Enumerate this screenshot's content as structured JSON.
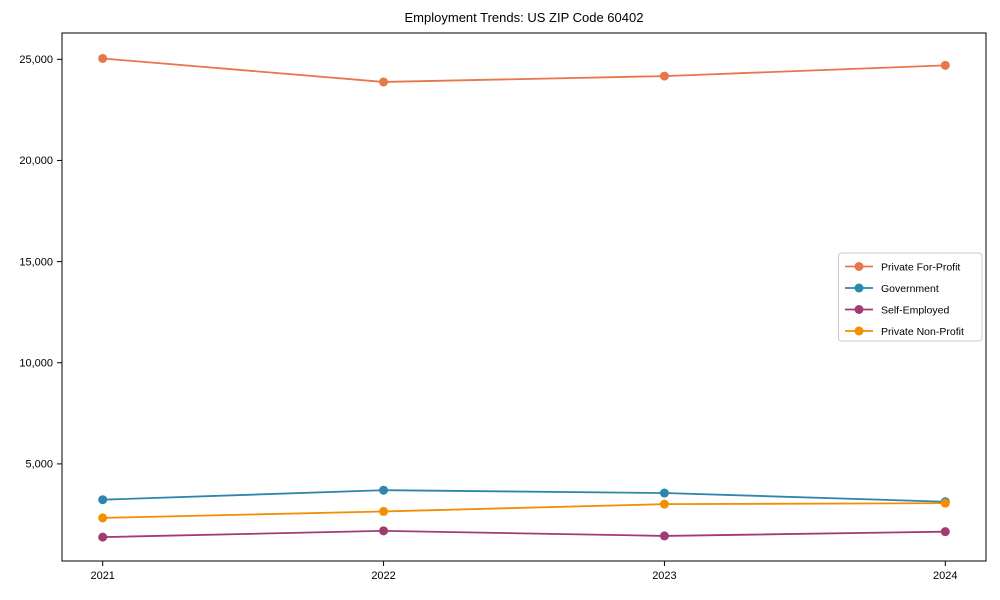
{
  "chart_data": {
    "type": "line",
    "title": "Employment Trends: US ZIP Code 60402",
    "xlabel": "",
    "ylabel": "",
    "categories": [
      "2021",
      "2022",
      "2023",
      "2024"
    ],
    "series": [
      {
        "name": "Private For-Profit",
        "color": "#E8764B",
        "values": [
          25040,
          23880,
          24170,
          24700
        ]
      },
      {
        "name": "Government",
        "color": "#2E86AB",
        "values": [
          3230,
          3700,
          3560,
          3130
        ]
      },
      {
        "name": "Self-Employed",
        "color": "#A23B72",
        "values": [
          1380,
          1690,
          1440,
          1650
        ]
      },
      {
        "name": "Private Non-Profit",
        "color": "#F18F01",
        "values": [
          2330,
          2650,
          3010,
          3060
        ]
      }
    ],
    "ylim": [
      200,
      26300
    ],
    "yticks": [
      5000,
      10000,
      15000,
      20000,
      25000
    ],
    "ytick_labels": [
      "5,000",
      "10,000",
      "15,000",
      "20,000",
      "25,000"
    ],
    "grid": false,
    "legend_position": "center-right",
    "colors": {
      "axis": "#000000",
      "legend_border": "#cccccc",
      "background": "#ffffff",
      "text": "#000000"
    }
  }
}
